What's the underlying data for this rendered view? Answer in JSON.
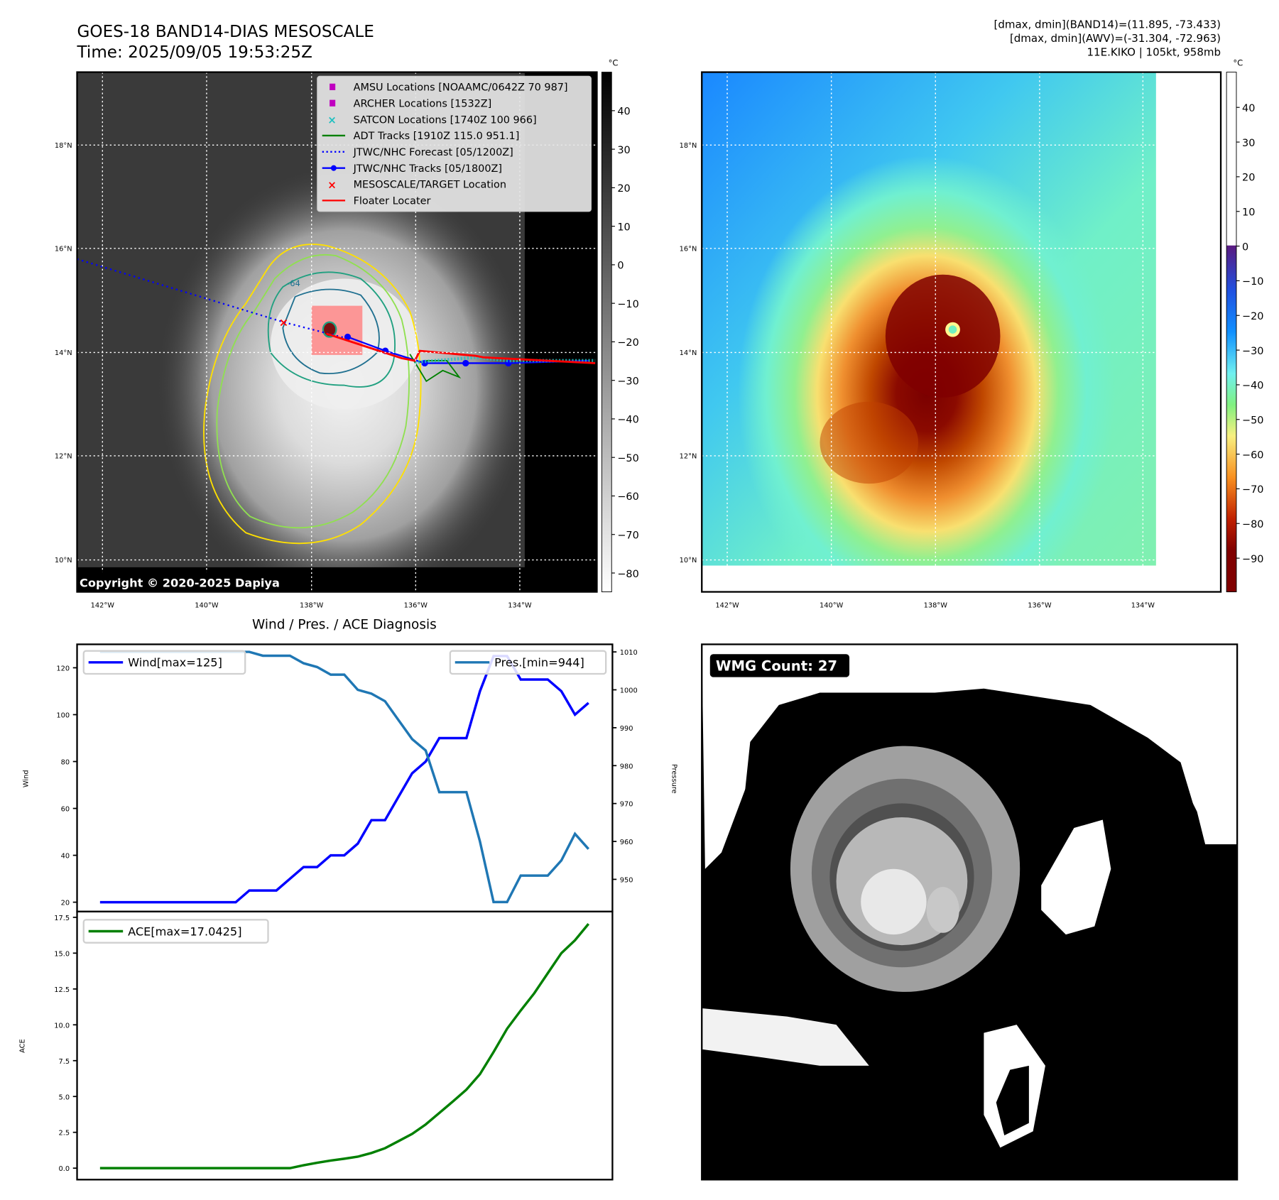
{
  "header": {
    "title_line1": "GOES-18 BAND14-DIAS MESOSCALE",
    "title_line2": "Time: 2025/09/05 19:53:25Z",
    "info_line1": "[dmax, dmin](BAND14)=(11.895, -73.433)",
    "info_line2": "[dmax, dmin](AWV)=(-31.304, -72.963)",
    "info_line3": "11E.KIKO | 105kt, 958mb"
  },
  "maps": {
    "unit": "°C",
    "lat_labels": [
      "18°N",
      "16°N",
      "14°N",
      "12°N",
      "10°N"
    ],
    "lon_labels": [
      "142°W",
      "140°W",
      "138°W",
      "136°W",
      "134°W"
    ],
    "left_colorbar_ticks": [
      "40",
      "30",
      "20",
      "10",
      "0",
      "−10",
      "−20",
      "−30",
      "−40",
      "−50",
      "−60",
      "−70",
      "−80"
    ],
    "right_colorbar_ticks": [
      "40",
      "30",
      "20",
      "10",
      "0",
      "−10",
      "−20",
      "−30",
      "−40",
      "−50",
      "−60",
      "−70",
      "−80",
      "−90"
    ],
    "contour_label": "-64",
    "copyright": "Copyright © 2020-2025 Dapiya",
    "legend": [
      {
        "label": "AMSU Locations [NOAAMC/0642Z 70 987]",
        "marker": "square",
        "color": "#c000c0"
      },
      {
        "label": "ARCHER Locations [1532Z]",
        "marker": "square",
        "color": "#c000c0"
      },
      {
        "label": "SATCON Locations [1740Z 100 966]",
        "marker": "x",
        "color": "#20c0c0"
      },
      {
        "label": "ADT Tracks [1910Z 115.0 951.1]",
        "marker": "line",
        "color": "#008000"
      },
      {
        "label": "JTWC/NHC Forecast [05/1200Z]",
        "marker": "dotted",
        "color": "#0000ff"
      },
      {
        "label": "JTWC/NHC Tracks [05/1800Z]",
        "marker": "line-dot",
        "color": "#0000ff"
      },
      {
        "label": "MESOSCALE/TARGET Location",
        "marker": "x",
        "color": "#ff0000"
      },
      {
        "label": "Floater Locater",
        "marker": "line",
        "color": "#ff0000"
      }
    ]
  },
  "wmg": {
    "label": "WMG Count: 27"
  },
  "chart_data": [
    {
      "type": "line",
      "title": "Wind / Pres. / ACE Diagnosis",
      "ylabel": "Wind",
      "y2label": "Pressure",
      "ylim": [
        16,
        130
      ],
      "y2lim": [
        941.5,
        1012
      ],
      "yticks": [
        20,
        40,
        60,
        80,
        100,
        120
      ],
      "y2ticks": [
        950,
        960,
        970,
        980,
        990,
        1000,
        1010
      ],
      "series": [
        {
          "name": "Wind[max=125]",
          "color": "#0000ff",
          "axis": "left",
          "values": [
            20,
            20,
            20,
            20,
            20,
            20,
            20,
            20,
            20,
            20,
            20,
            25,
            25,
            25,
            30,
            35,
            35,
            40,
            40,
            45,
            55,
            55,
            65,
            75,
            80,
            90,
            90,
            90,
            110,
            125,
            125,
            115,
            115,
            115,
            110,
            100,
            105
          ]
        },
        {
          "name": "Pres.[min=944]",
          "color": "#1f77b4",
          "axis": "right",
          "values": [
            1010,
            1010,
            1010,
            1010,
            1010,
            1010,
            1010,
            1010,
            1010,
            1010,
            1010,
            1010,
            1009,
            1009,
            1009,
            1007,
            1006,
            1004,
            1004,
            1000,
            999,
            997,
            992,
            987,
            984,
            973,
            973,
            973,
            960,
            944,
            944,
            951,
            951,
            951,
            955,
            962,
            958
          ]
        }
      ]
    },
    {
      "type": "line",
      "ylabel": "ACE",
      "ylim": [
        -0.8,
        17.9
      ],
      "yticks": [
        "0.0",
        "2.5",
        "5.0",
        "7.5",
        "10.0",
        "12.5",
        "15.0",
        "17.5"
      ],
      "series": [
        {
          "name": "ACE[max=17.0425]",
          "color": "#008000",
          "values": [
            0,
            0,
            0,
            0,
            0,
            0,
            0,
            0,
            0,
            0,
            0,
            0,
            0,
            0,
            0,
            0.2,
            0.38,
            0.53,
            0.66,
            0.8,
            1.06,
            1.39,
            1.89,
            2.39,
            3.05,
            3.85,
            4.65,
            5.48,
            6.56,
            8.1,
            9.73,
            11.0,
            12.2,
            13.6,
            15.0,
            15.9,
            17.04
          ]
        }
      ]
    }
  ]
}
